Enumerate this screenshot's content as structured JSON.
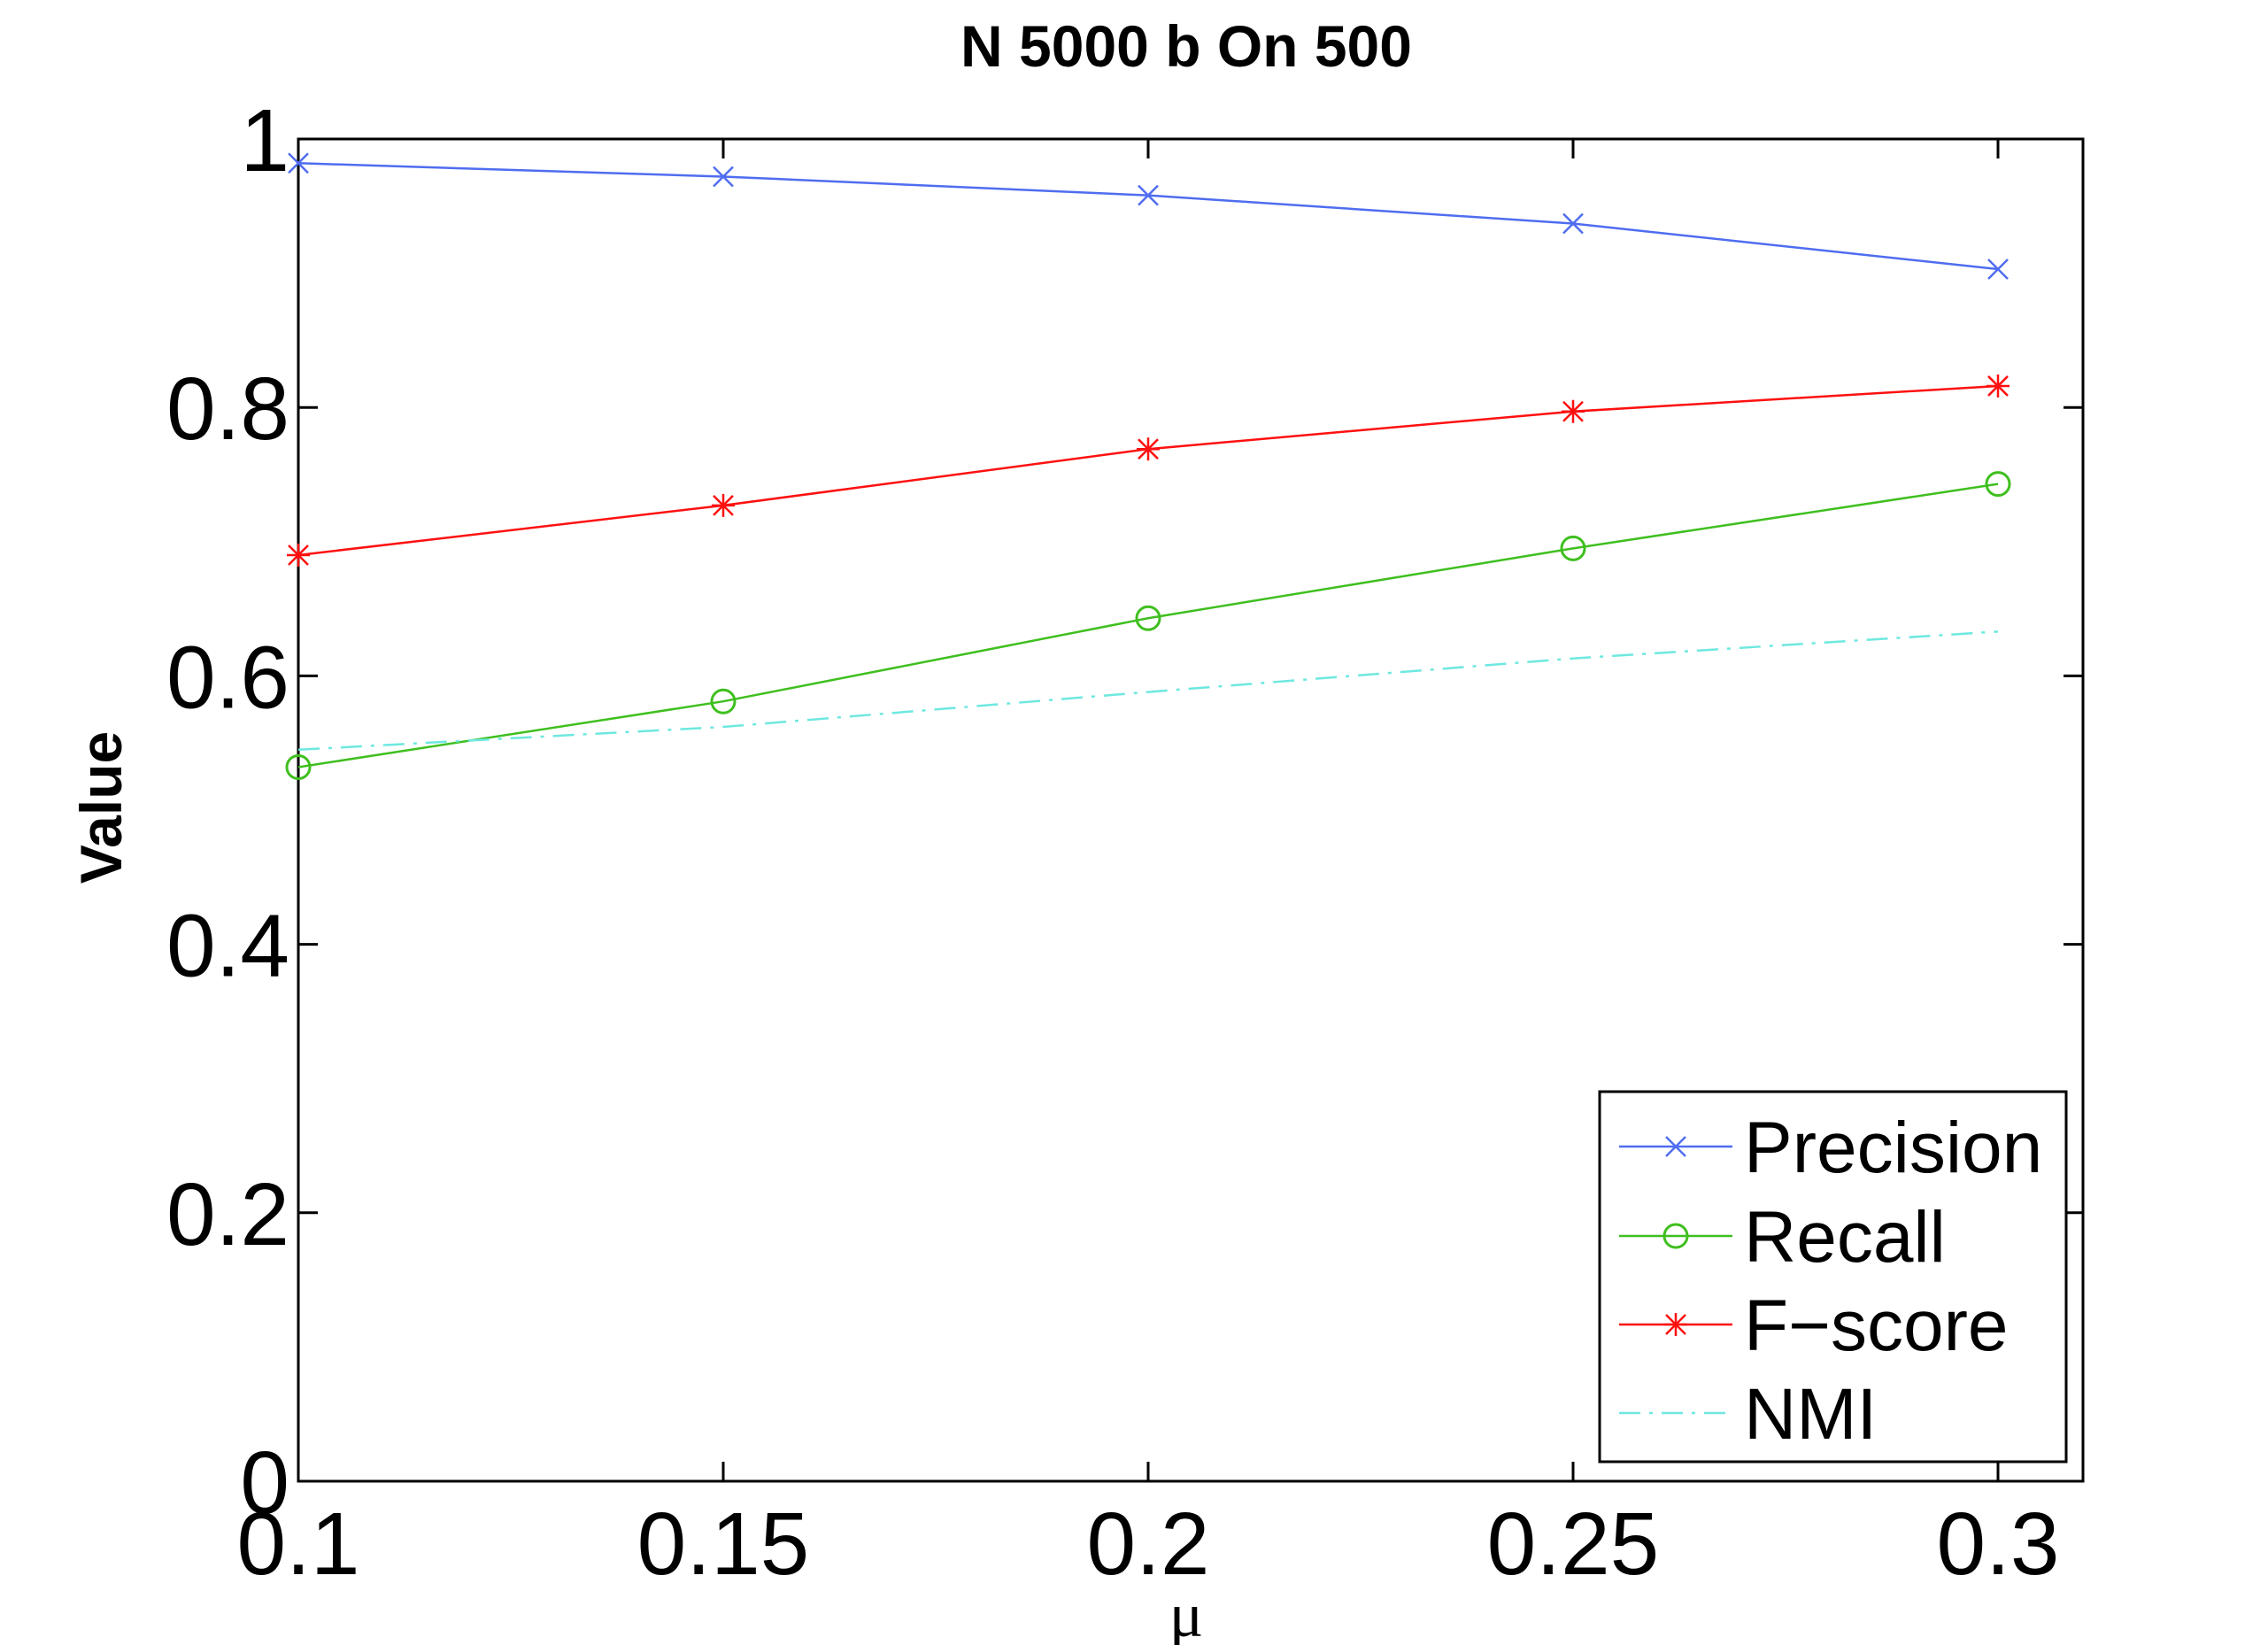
{
  "chart_data": {
    "type": "line",
    "title": "N 5000 b On 500",
    "xlabel": "μ",
    "ylabel": "Value",
    "x": [
      0.1,
      0.15,
      0.2,
      0.25,
      0.3
    ],
    "x_tick_labels": [
      "0.1",
      "0.15",
      "0.2",
      "0.25",
      "0.3"
    ],
    "y_ticks": [
      0,
      0.2,
      0.4,
      0.6,
      0.8,
      1
    ],
    "y_tick_labels": [
      "0",
      "0.2",
      "0.4",
      "0.6",
      "0.8",
      "1"
    ],
    "xlim": [
      0.1,
      0.31
    ],
    "ylim": [
      0,
      1
    ],
    "grid": false,
    "legend_position": "bottom-right",
    "series": [
      {
        "name": "Precision",
        "color": "#4f6df0",
        "marker": "x",
        "line": "solid",
        "values": [
          0.982,
          0.972,
          0.958,
          0.937,
          0.903
        ]
      },
      {
        "name": "Recall",
        "color": "#3fbf1f",
        "marker": "circle",
        "line": "solid",
        "values": [
          0.532,
          0.581,
          0.643,
          0.695,
          0.743
        ]
      },
      {
        "name": "F−score",
        "color": "#ff1010",
        "marker": "asterisk",
        "line": "solid",
        "values": [
          0.69,
          0.727,
          0.769,
          0.797,
          0.816
        ]
      },
      {
        "name": "NMI",
        "color": "#6ee8e0",
        "marker": "none",
        "line": "dashdot",
        "values": [
          0.545,
          0.562,
          0.588,
          0.613,
          0.633
        ]
      }
    ]
  }
}
